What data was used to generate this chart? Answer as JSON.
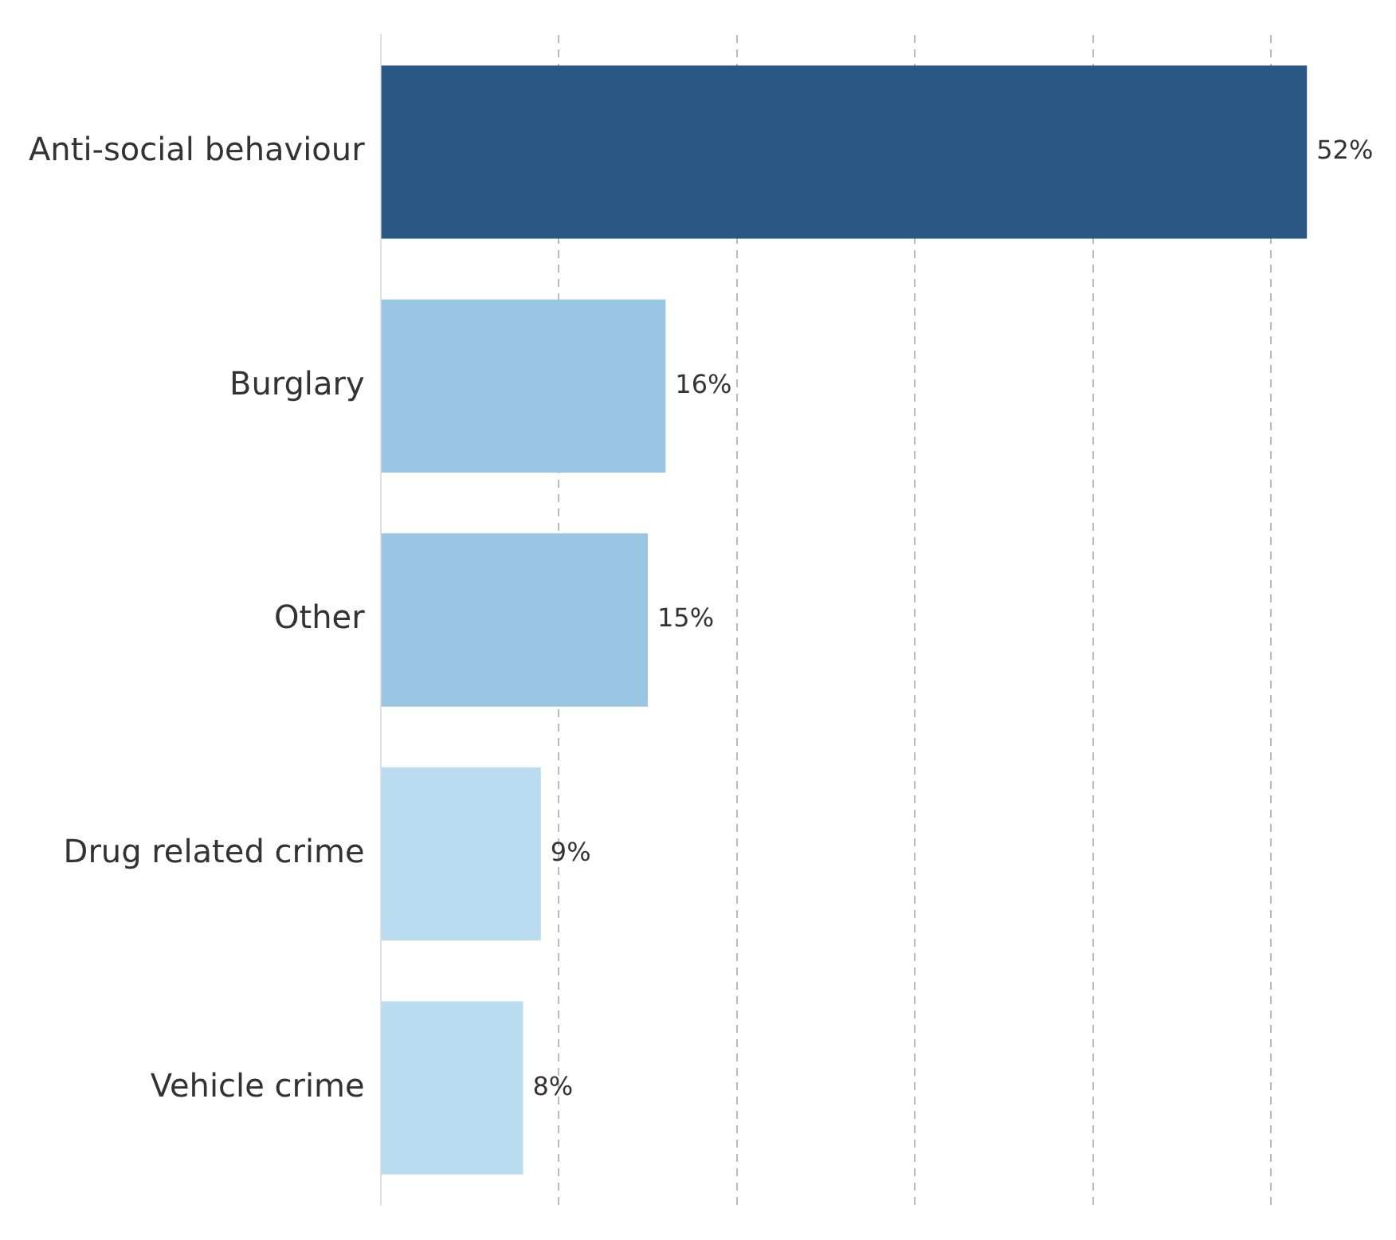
{
  "chart_data": {
    "type": "bar",
    "orientation": "horizontal",
    "categories": [
      "Anti-social behaviour",
      "Burglary",
      "Other",
      "Drug related crime",
      "Vehicle crime"
    ],
    "values": [
      52,
      16,
      15,
      9,
      8
    ],
    "colors": [
      "#2a5783",
      "#9ac5e3",
      "#9ac5e3",
      "#b9dcf0",
      "#b9dcf0"
    ],
    "value_labels": [
      "52%",
      "16%",
      "15%",
      "9%",
      "8%"
    ],
    "xlim": [
      0,
      57
    ],
    "xticks": [
      {
        "value": 0,
        "label": null
      },
      {
        "value": 10,
        "label": null
      },
      {
        "value": 20,
        "label": null
      },
      {
        "value": 30,
        "label": null
      },
      {
        "value": 40,
        "label": null
      },
      {
        "value": 50,
        "label": null
      }
    ],
    "grid": "x",
    "legend": false,
    "tick_labels": "y"
  }
}
